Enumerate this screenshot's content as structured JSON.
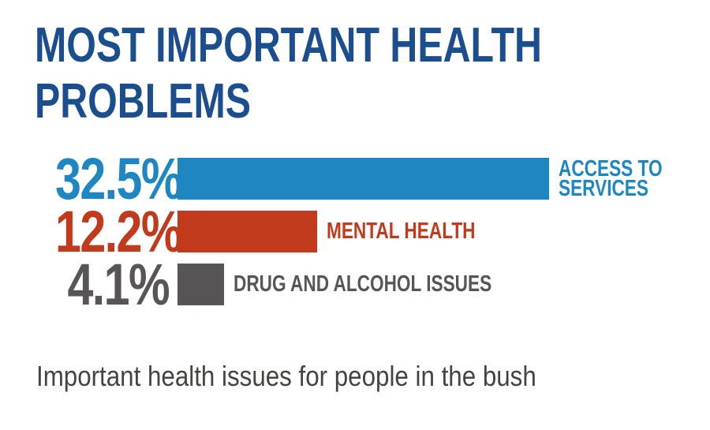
{
  "header": {
    "title": "MOST IMPORTANT HEALTH\nPROBLEMS",
    "title_color": "#1b4e8e"
  },
  "caption": {
    "text": "Important health issues for people in the bush",
    "color": "#454440"
  },
  "chart_data": {
    "type": "bar",
    "orientation": "horizontal",
    "title": "MOST IMPORTANT HEALTH PROBLEMS",
    "categories": [
      "ACCESS TO\nSERVICES",
      "MENTAL HEALTH",
      "DRUG AND ALCOHOL ISSUES"
    ],
    "values": [
      32.5,
      12.2,
      4.1
    ],
    "value_labels": [
      "32.5%",
      "12.2%",
      "4.1%"
    ],
    "colors": [
      "#1e86c1",
      "#c23a1c",
      "#595456"
    ],
    "xlabel": "",
    "ylabel": "",
    "xlim": [
      0,
      34
    ],
    "grid": false,
    "legend": false,
    "value_label_position": "left-of-bar",
    "category_label_position": "right-of-bar"
  }
}
